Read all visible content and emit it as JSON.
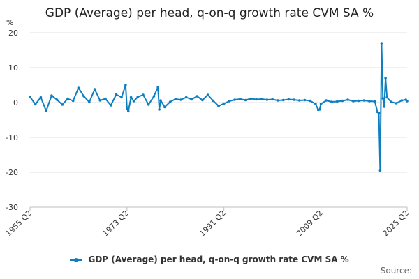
{
  "chart_data": {
    "type": "line",
    "title": "GDP (Average) per head, q-on-q growth rate CVM SA %",
    "ylabel": "%",
    "ylim": [
      -30,
      20
    ],
    "yticks": [
      20,
      10,
      0,
      -10,
      -20,
      -30
    ],
    "xticks": [
      "1955 Q2",
      "1973 Q2",
      "1991 Q2",
      "2009 Q2",
      "2025 Q2"
    ],
    "grid": true,
    "legend_position": "bottom",
    "series_color": "#0d7fc1",
    "series": [
      {
        "name": "GDP (Average) per head, q-on-q growth rate CVM SA %",
        "x": [
          "1955 Q2",
          "1956 Q2",
          "1957 Q2",
          "1958 Q2",
          "1959 Q2",
          "1960 Q2",
          "1961 Q2",
          "1962 Q2",
          "1963 Q2",
          "1964 Q2",
          "1965 Q2",
          "1966 Q2",
          "1967 Q2",
          "1968 Q2",
          "1969 Q2",
          "1970 Q2",
          "1971 Q2",
          "1972 Q2",
          "1973 Q1",
          "1973 Q2",
          "1973 Q3",
          "1974 Q1",
          "1974 Q3",
          "1975 Q2",
          "1976 Q2",
          "1977 Q2",
          "1978 Q2",
          "1979 Q1",
          "1979 Q2",
          "1979 Q3",
          "1980 Q2",
          "1981 Q2",
          "1982 Q2",
          "1983 Q2",
          "1984 Q2",
          "1985 Q2",
          "1986 Q2",
          "1987 Q2",
          "1988 Q2",
          "1989 Q2",
          "1990 Q2",
          "1991 Q2",
          "1992 Q2",
          "1993 Q2",
          "1994 Q2",
          "1995 Q2",
          "1996 Q2",
          "1997 Q2",
          "1998 Q2",
          "1999 Q2",
          "2000 Q2",
          "2001 Q2",
          "2002 Q2",
          "2003 Q2",
          "2004 Q2",
          "2005 Q2",
          "2006 Q2",
          "2007 Q2",
          "2008 Q2",
          "2008 Q4",
          "2009 Q1",
          "2009 Q2",
          "2010 Q2",
          "2011 Q2",
          "2012 Q2",
          "2013 Q2",
          "2014 Q2",
          "2015 Q2",
          "2016 Q2",
          "2017 Q2",
          "2018 Q2",
          "2019 Q2",
          "2019 Q4",
          "2020 Q1",
          "2020 Q2",
          "2020 Q3",
          "2020 Q4",
          "2021 Q1",
          "2021 Q2",
          "2021 Q3",
          "2022 Q2",
          "2023 Q2",
          "2024 Q2",
          "2025 Q1",
          "2025 Q2"
        ],
        "values": [
          1.6,
          -0.5,
          1.5,
          -2.4,
          2.0,
          0.8,
          -0.6,
          1.1,
          0.5,
          4.2,
          1.8,
          0.1,
          3.8,
          0.6,
          1.1,
          -0.8,
          2.3,
          1.5,
          5.0,
          -1.8,
          -2.5,
          1.5,
          0.4,
          1.6,
          2.2,
          -0.6,
          1.8,
          4.4,
          -2.0,
          0.6,
          -1.3,
          0.2,
          1.0,
          0.8,
          1.5,
          0.9,
          1.8,
          0.7,
          2.2,
          0.5,
          -1.0,
          -0.3,
          0.4,
          0.8,
          1.0,
          0.7,
          1.1,
          0.9,
          1.0,
          0.8,
          0.9,
          0.6,
          0.7,
          0.9,
          0.8,
          0.6,
          0.7,
          0.5,
          -0.4,
          -2.1,
          -2.0,
          -0.4,
          0.6,
          0.2,
          0.3,
          0.5,
          0.8,
          0.4,
          0.5,
          0.6,
          0.4,
          0.3,
          -2.7,
          -3.0,
          -19.5,
          17.0,
          1.2,
          -1.2,
          7.0,
          1.5,
          0.2,
          -0.2,
          0.6,
          0.8,
          0.4
        ]
      }
    ]
  },
  "legend": {
    "label": "GDP (Average) per head, q-on-q growth rate CVM SA %"
  },
  "source": {
    "label": "Source:"
  }
}
